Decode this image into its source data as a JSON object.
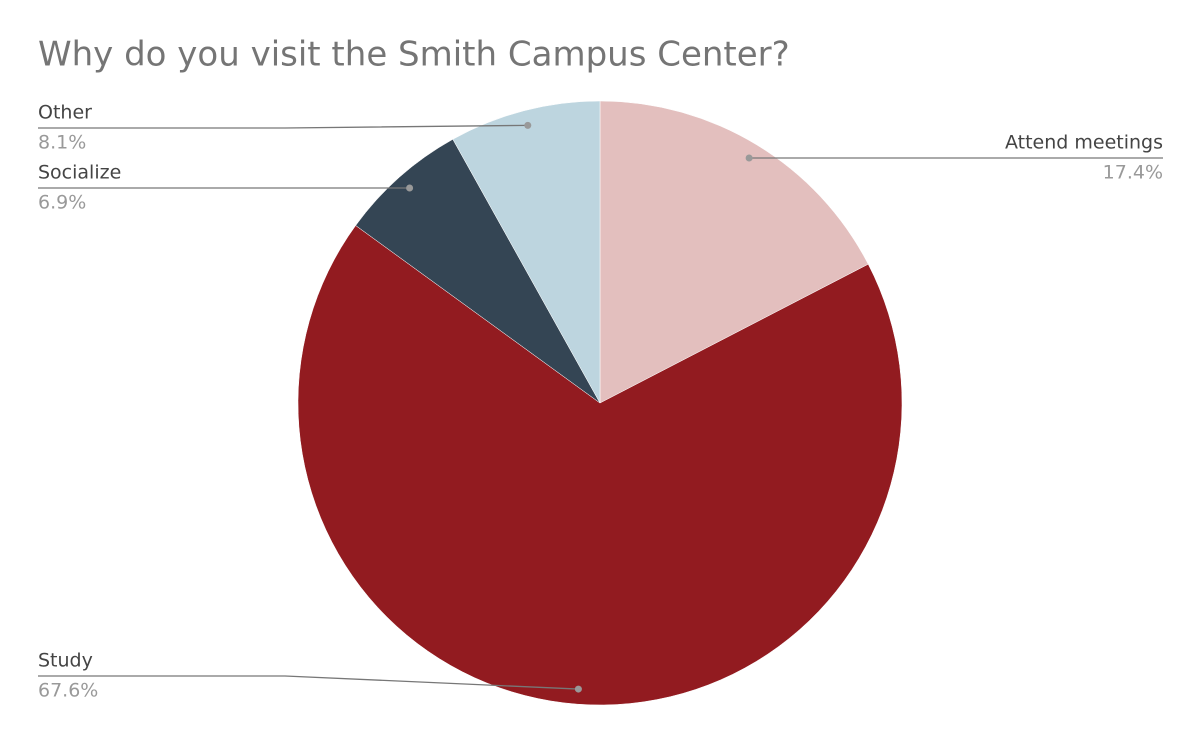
{
  "chart_data": {
    "type": "pie",
    "title": "Why do you visit the Smith Campus Center?",
    "categories": [
      "Attend meetings",
      "Study",
      "Socialize",
      "Other"
    ],
    "values": [
      17.4,
      67.6,
      6.9,
      8.1
    ],
    "value_labels": [
      "17.4%",
      "67.6%",
      "6.9%",
      "8.1%"
    ],
    "colors": [
      "#e3bfbe",
      "#921b20",
      "#344554",
      "#bdd5df"
    ]
  }
}
